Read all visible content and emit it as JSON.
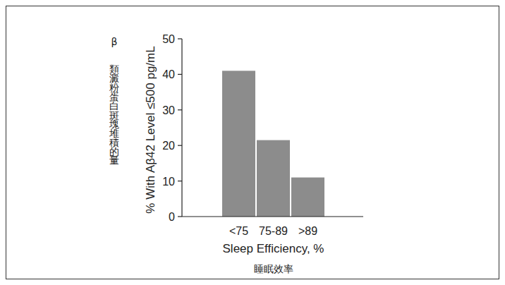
{
  "chart_data": {
    "type": "bar",
    "y_label": "% With Aβ42 Level ≤500 pg/mL",
    "x_label": "Sleep Efficiency, %",
    "annotations": [
      "β類澱粉蛋白斑塊堆積的量",
      "睡眠效率"
    ],
    "categories": [
      "<75",
      "75-89",
      ">89"
    ],
    "values": [
      41,
      21.5,
      11
    ],
    "color": "#8c8c8c",
    "ylim": [
      0,
      50
    ],
    "yticks": [
      0,
      10,
      20,
      30,
      40,
      50
    ],
    "grid": false
  }
}
